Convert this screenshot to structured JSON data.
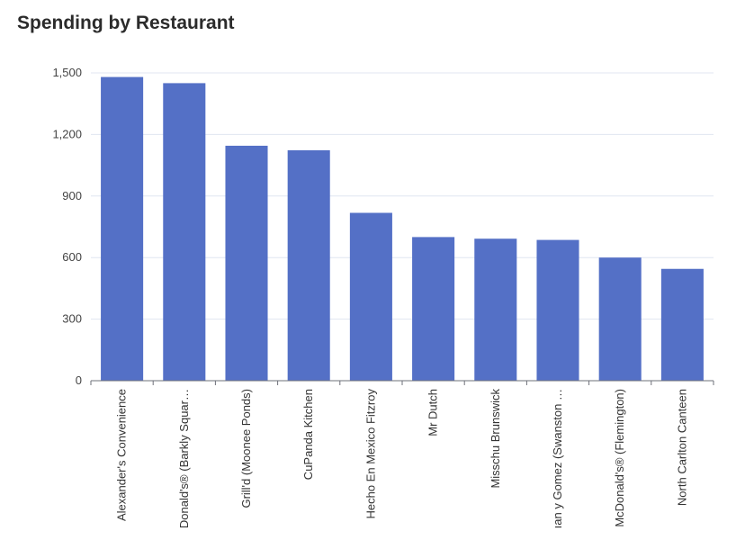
{
  "chart_data": {
    "type": "bar",
    "title": "Spending by Restaurant",
    "xlabel": "",
    "ylabel": "",
    "categories": [
      "Alexander's Convenience",
      "Donald's® (Barkly Squar…",
      "Grill'd (Moonee Ponds)",
      "CuPanda Kitchen",
      "Hecho En Mexico Fitzroy",
      "Mr Dutch",
      "Misschu Brunswick",
      "ıan y Gomez (Swanston …",
      "McDonald's® (Flemington)",
      "North Carlton Canteen"
    ],
    "values": [
      1480,
      1450,
      1145,
      1123,
      818,
      700,
      692,
      686,
      600,
      545
    ],
    "ylim": [
      0,
      1500
    ],
    "yticks": [
      0,
      300,
      600,
      900,
      1200,
      1500
    ],
    "ytick_labels": [
      "0",
      "300",
      "600",
      "900",
      "1,200",
      "1,500"
    ],
    "grid": true,
    "bar_color": "#5470c6"
  }
}
